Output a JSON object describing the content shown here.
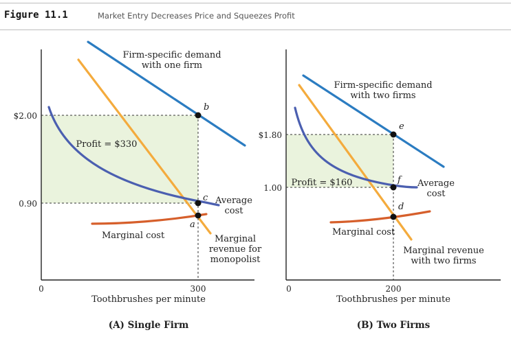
{
  "figure": {
    "label": "Figure 11.1",
    "title": "Market Entry Decreases Price and Squeezes Profit"
  },
  "colors": {
    "demand": "#2b7cc1",
    "marginal_revenue": "#f4ab3d",
    "average_cost": "#4b5fb0",
    "marginal_cost": "#d65f2b",
    "profit_fill": "#eaf3dd",
    "axis": "#222222",
    "guide": "#333333"
  },
  "chart_data": [
    {
      "type": "line",
      "panel_title": "(A) Single Firm",
      "xlabel": "Toothbrushes per minute",
      "ylabel": "",
      "x_ticks": [
        "0",
        "300"
      ],
      "y_ticks": [
        "$2.00",
        "0.90"
      ],
      "curves": [
        {
          "id": "demand",
          "label": [
            "Firm-specific demand",
            "with one firm"
          ]
        },
        {
          "id": "marginal_revenue",
          "label": [
            "Marginal",
            "revenue for",
            "monopolist"
          ]
        },
        {
          "id": "average_cost",
          "label": [
            "Average",
            "cost"
          ]
        },
        {
          "id": "marginal_cost",
          "label": [
            "Marginal cost"
          ]
        }
      ],
      "profit_label": "Profit = $330",
      "points": [
        {
          "name": "b",
          "x": 300,
          "y": 2.0
        },
        {
          "name": "c",
          "x": 300,
          "y": 0.9
        },
        {
          "name": "a",
          "x": 300,
          "y": null
        }
      ]
    },
    {
      "type": "line",
      "panel_title": "(B) Two Firms",
      "xlabel": "Toothbrushes per minute",
      "ylabel": "",
      "x_ticks": [
        "0",
        "200"
      ],
      "y_ticks": [
        "$1.80",
        "1.00"
      ],
      "curves": [
        {
          "id": "demand",
          "label": [
            "Firm-specific demand",
            "with two firms"
          ]
        },
        {
          "id": "marginal_revenue",
          "label": [
            "Marginal revenue",
            "with two firms"
          ]
        },
        {
          "id": "average_cost",
          "label": [
            "Average",
            "cost"
          ]
        },
        {
          "id": "marginal_cost",
          "label": [
            "Marginal cost"
          ]
        }
      ],
      "profit_label": "Profit = $160",
      "points": [
        {
          "name": "e",
          "x": 200,
          "y": 1.8
        },
        {
          "name": "f",
          "x": 200,
          "y": 1.0
        },
        {
          "name": "d",
          "x": 200,
          "y": null
        }
      ]
    }
  ]
}
